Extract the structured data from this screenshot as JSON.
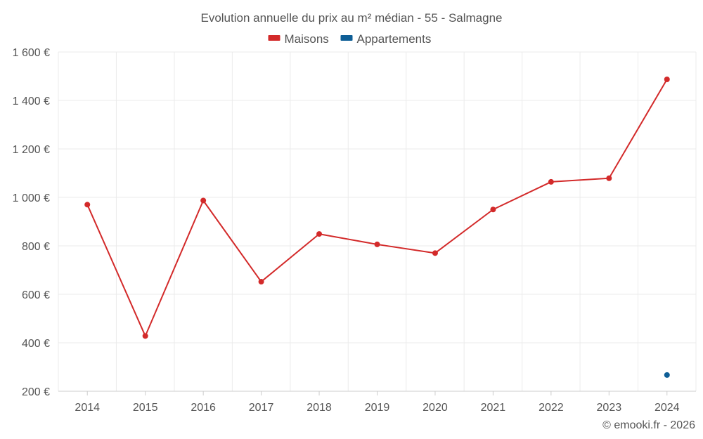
{
  "chart_data": {
    "type": "line",
    "title": "Evolution annuelle du prix au m² médian - 55 - Salmagne",
    "categories": [
      "2014",
      "2015",
      "2016",
      "2017",
      "2018",
      "2019",
      "2020",
      "2021",
      "2022",
      "2023",
      "2024"
    ],
    "ylim": [
      200,
      1600
    ],
    "yticks": [
      200,
      400,
      600,
      800,
      1000,
      1200,
      1400,
      1600
    ],
    "ytick_labels": [
      "200 €",
      "400 €",
      "600 €",
      "800 €",
      "1 000 €",
      "1 200 €",
      "1 400 €",
      "1 600 €"
    ],
    "grid": true,
    "legend_position": "top-center",
    "series": [
      {
        "name": "Maisons",
        "color": "#d32a2a",
        "values": [
          970,
          428,
          987,
          652,
          849,
          806,
          770,
          950,
          1064,
          1079,
          1487
        ]
      },
      {
        "name": "Appartements",
        "color": "#0e5e96",
        "values": [
          null,
          null,
          null,
          null,
          null,
          null,
          null,
          null,
          null,
          null,
          267
        ]
      }
    ],
    "credit": "© emooki.fr - 2026"
  }
}
